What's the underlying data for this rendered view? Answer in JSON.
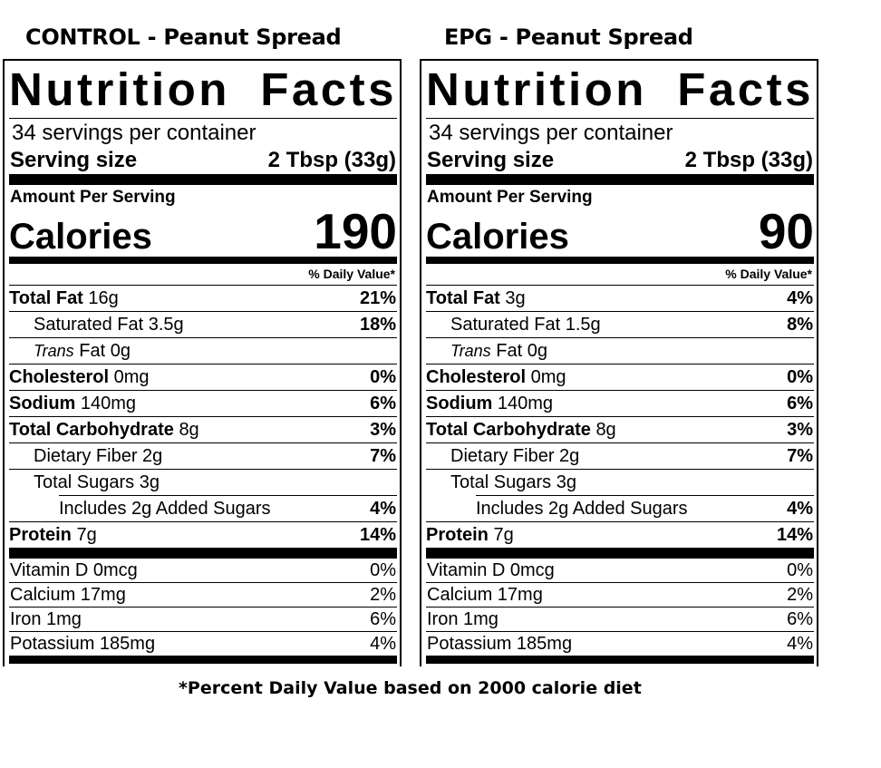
{
  "captions": {
    "left": "CONTROL - Peanut Spread",
    "right": "EPG - Peanut Spread",
    "footnote": "*Percent Daily Value based on 2000 calorie diet"
  },
  "panels": [
    {
      "title_word1": "Nutrition",
      "title_word2": "Facts",
      "servings": "34 servings per container",
      "serving_size_label": "Serving size",
      "serving_size_value": "2 Tbsp (33g)",
      "amount_label": "Amount Per Serving",
      "calories_label": "Calories",
      "calories_value": "190",
      "dv_header": "% Daily Value*",
      "total_fat": {
        "label": "Total Fat",
        "amount": "16g",
        "pct": "21%"
      },
      "sat_fat": {
        "label": "Saturated Fat 3.5g",
        "pct": "18%"
      },
      "trans_fat": {
        "italic": "Trans",
        "rest": "Fat 0g"
      },
      "cholesterol": {
        "label": "Cholesterol",
        "amount": "0mg",
        "pct": "0%"
      },
      "sodium": {
        "label": "Sodium",
        "amount": "140mg",
        "pct": "6%"
      },
      "carbs": {
        "label": "Total Carbohydrate",
        "amount": "8g",
        "pct": "3%"
      },
      "fiber": {
        "label": "Dietary Fiber 2g",
        "pct": "7%"
      },
      "sugars": {
        "label": "Total Sugars 3g"
      },
      "added_sugars": {
        "label": "Includes 2g Added Sugars",
        "pct": "4%"
      },
      "protein": {
        "label": "Protein",
        "amount": "7g",
        "pct": "14%"
      },
      "vitamins": [
        {
          "label": "Vitamin D 0mcg",
          "pct": "0%"
        },
        {
          "label": "Calcium 17mg",
          "pct": "2%"
        },
        {
          "label": "Iron 1mg",
          "pct": "6%"
        },
        {
          "label": "Potassium 185mg",
          "pct": "4%"
        }
      ]
    },
    {
      "title_word1": "Nutrition",
      "title_word2": "Facts",
      "servings": "34 servings per container",
      "serving_size_label": "Serving size",
      "serving_size_value": "2 Tbsp (33g)",
      "amount_label": "Amount Per Serving",
      "calories_label": "Calories",
      "calories_value": "90",
      "dv_header": "% Daily Value*",
      "total_fat": {
        "label": "Total Fat",
        "amount": "3g",
        "pct": "4%"
      },
      "sat_fat": {
        "label": "Saturated Fat 1.5g",
        "pct": "8%"
      },
      "trans_fat": {
        "italic": "Trans",
        "rest": "Fat 0g"
      },
      "cholesterol": {
        "label": "Cholesterol",
        "amount": "0mg",
        "pct": "0%"
      },
      "sodium": {
        "label": "Sodium",
        "amount": "140mg",
        "pct": "6%"
      },
      "carbs": {
        "label": "Total Carbohydrate",
        "amount": "8g",
        "pct": "3%"
      },
      "fiber": {
        "label": "Dietary Fiber 2g",
        "pct": "7%"
      },
      "sugars": {
        "label": "Total Sugars 3g"
      },
      "added_sugars": {
        "label": "Includes 2g Added Sugars",
        "pct": "4%"
      },
      "protein": {
        "label": "Protein",
        "amount": "7g",
        "pct": "14%"
      },
      "vitamins": [
        {
          "label": "Vitamin D 0mcg",
          "pct": "0%"
        },
        {
          "label": "Calcium 17mg",
          "pct": "2%"
        },
        {
          "label": "Iron 1mg",
          "pct": "6%"
        },
        {
          "label": "Potassium 185mg",
          "pct": "4%"
        }
      ]
    }
  ]
}
